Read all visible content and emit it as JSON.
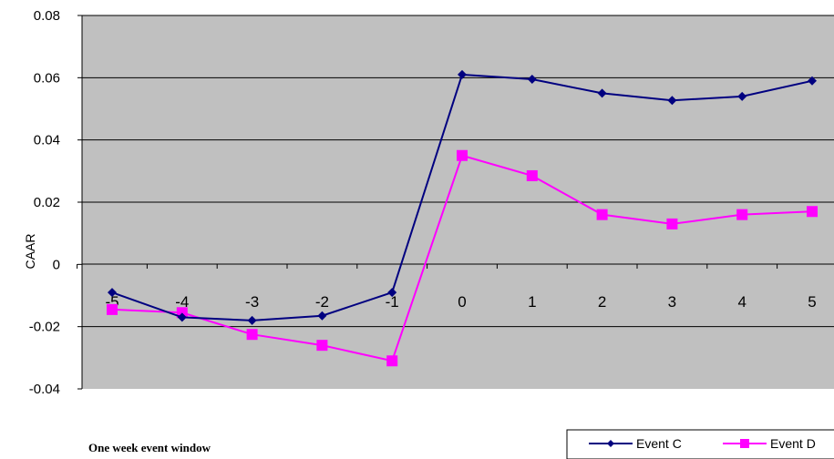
{
  "chart_data": {
    "type": "line",
    "title": "",
    "xlabel": "One week event window",
    "ylabel": "CAAR",
    "x": [
      -5,
      -4,
      -3,
      -2,
      -1,
      0,
      1,
      2,
      3,
      4,
      5
    ],
    "x_tick_labels": [
      "-5",
      "-4",
      "-3",
      "-2",
      "-1",
      "0",
      "1",
      "2",
      "3",
      "4",
      "5"
    ],
    "y_tick_labels": [
      "0.08",
      "0.06",
      "0.04",
      "0.02",
      "0",
      "-0.02",
      "-0.04"
    ],
    "ylim": [
      -0.04,
      0.08
    ],
    "y_ticks": [
      0.08,
      0.06,
      0.04,
      0.02,
      0,
      -0.02,
      -0.04
    ],
    "grid": true,
    "legend_position": "bottom-right",
    "plot_background": "#c0c0c0",
    "series": [
      {
        "name": "Event C",
        "color": "#000080",
        "marker": "diamond",
        "values": [
          -0.009,
          -0.017,
          -0.018,
          -0.0165,
          -0.009,
          0.061,
          0.0595,
          0.055,
          0.0527,
          0.054,
          0.059
        ]
      },
      {
        "name": "Event D",
        "color": "#ff00ff",
        "marker": "square",
        "values": [
          -0.0145,
          -0.0155,
          -0.0225,
          -0.026,
          -0.031,
          0.035,
          0.0285,
          0.016,
          0.013,
          0.016,
          0.017
        ]
      }
    ]
  }
}
